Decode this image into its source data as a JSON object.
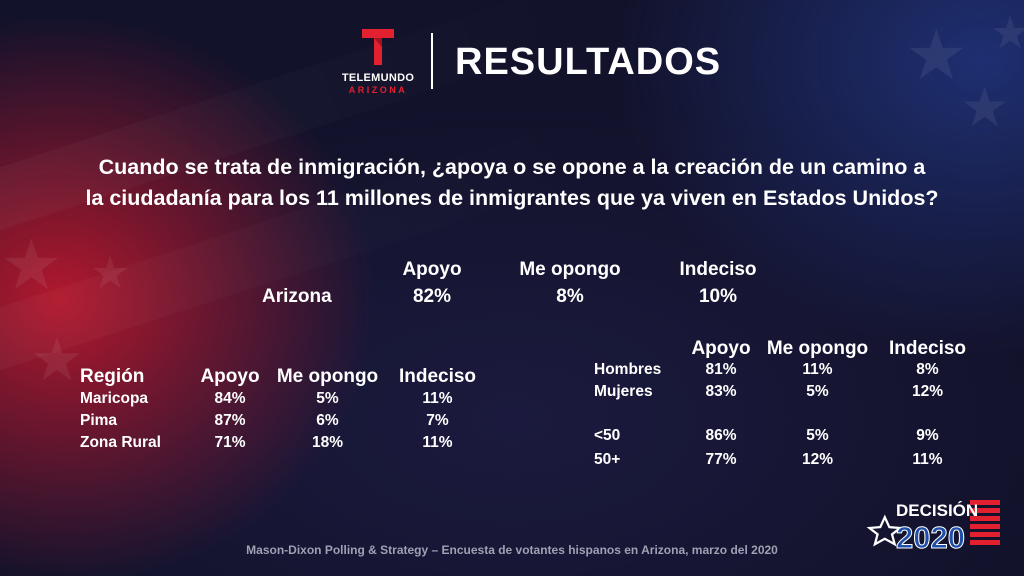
{
  "header": {
    "logo_name": "TELEMUNDO",
    "logo_sub": "ARIZONA",
    "title": "RESULTADOS"
  },
  "question": {
    "line1": "Cuando se trata de inmigración, ¿apoya o se opone a la creación de un camino a",
    "line2": "la ciudadanía para los 11 millones de inmigrantes que ya viven en Estados Unidos?"
  },
  "statewide": {
    "headers": [
      "Apoyo",
      "Me opongo",
      "Indeciso"
    ],
    "row": {
      "label": "Arizona",
      "values": [
        "82%",
        "8%",
        "10%"
      ]
    }
  },
  "region_table": {
    "label_header": "Región",
    "headers": [
      "Apoyo",
      "Me opongo",
      "Indeciso"
    ],
    "rows": [
      {
        "label": "Maricopa",
        "values": [
          "84%",
          "5%",
          "11%"
        ]
      },
      {
        "label": "Pima",
        "values": [
          "87%",
          "6%",
          "7%"
        ]
      },
      {
        "label": "Zona Rural",
        "values": [
          "71%",
          "18%",
          "11%"
        ]
      }
    ]
  },
  "demo_table": {
    "headers": [
      "Apoyo",
      "Me opongo",
      "Indeciso"
    ],
    "rows": [
      {
        "label": "Hombres",
        "values": [
          "81%",
          "11%",
          "8%"
        ]
      },
      {
        "label": "Mujeres",
        "values": [
          "83%",
          "5%",
          "12%"
        ]
      },
      {
        "label": "<50",
        "values": [
          "86%",
          "5%",
          "9%"
        ]
      },
      {
        "label": "50+",
        "values": [
          "77%",
          "12%",
          "11%"
        ]
      }
    ]
  },
  "badge": {
    "word": "DECISIÓN",
    "year": "2020"
  },
  "source": "Mason-Dixon  Polling & Strategy – Encuesta de votantes hispanos en Arizona, marzo del 2020",
  "colors": {
    "accent_red": "#e3202f",
    "flag_blue": "#1f4fa8"
  }
}
